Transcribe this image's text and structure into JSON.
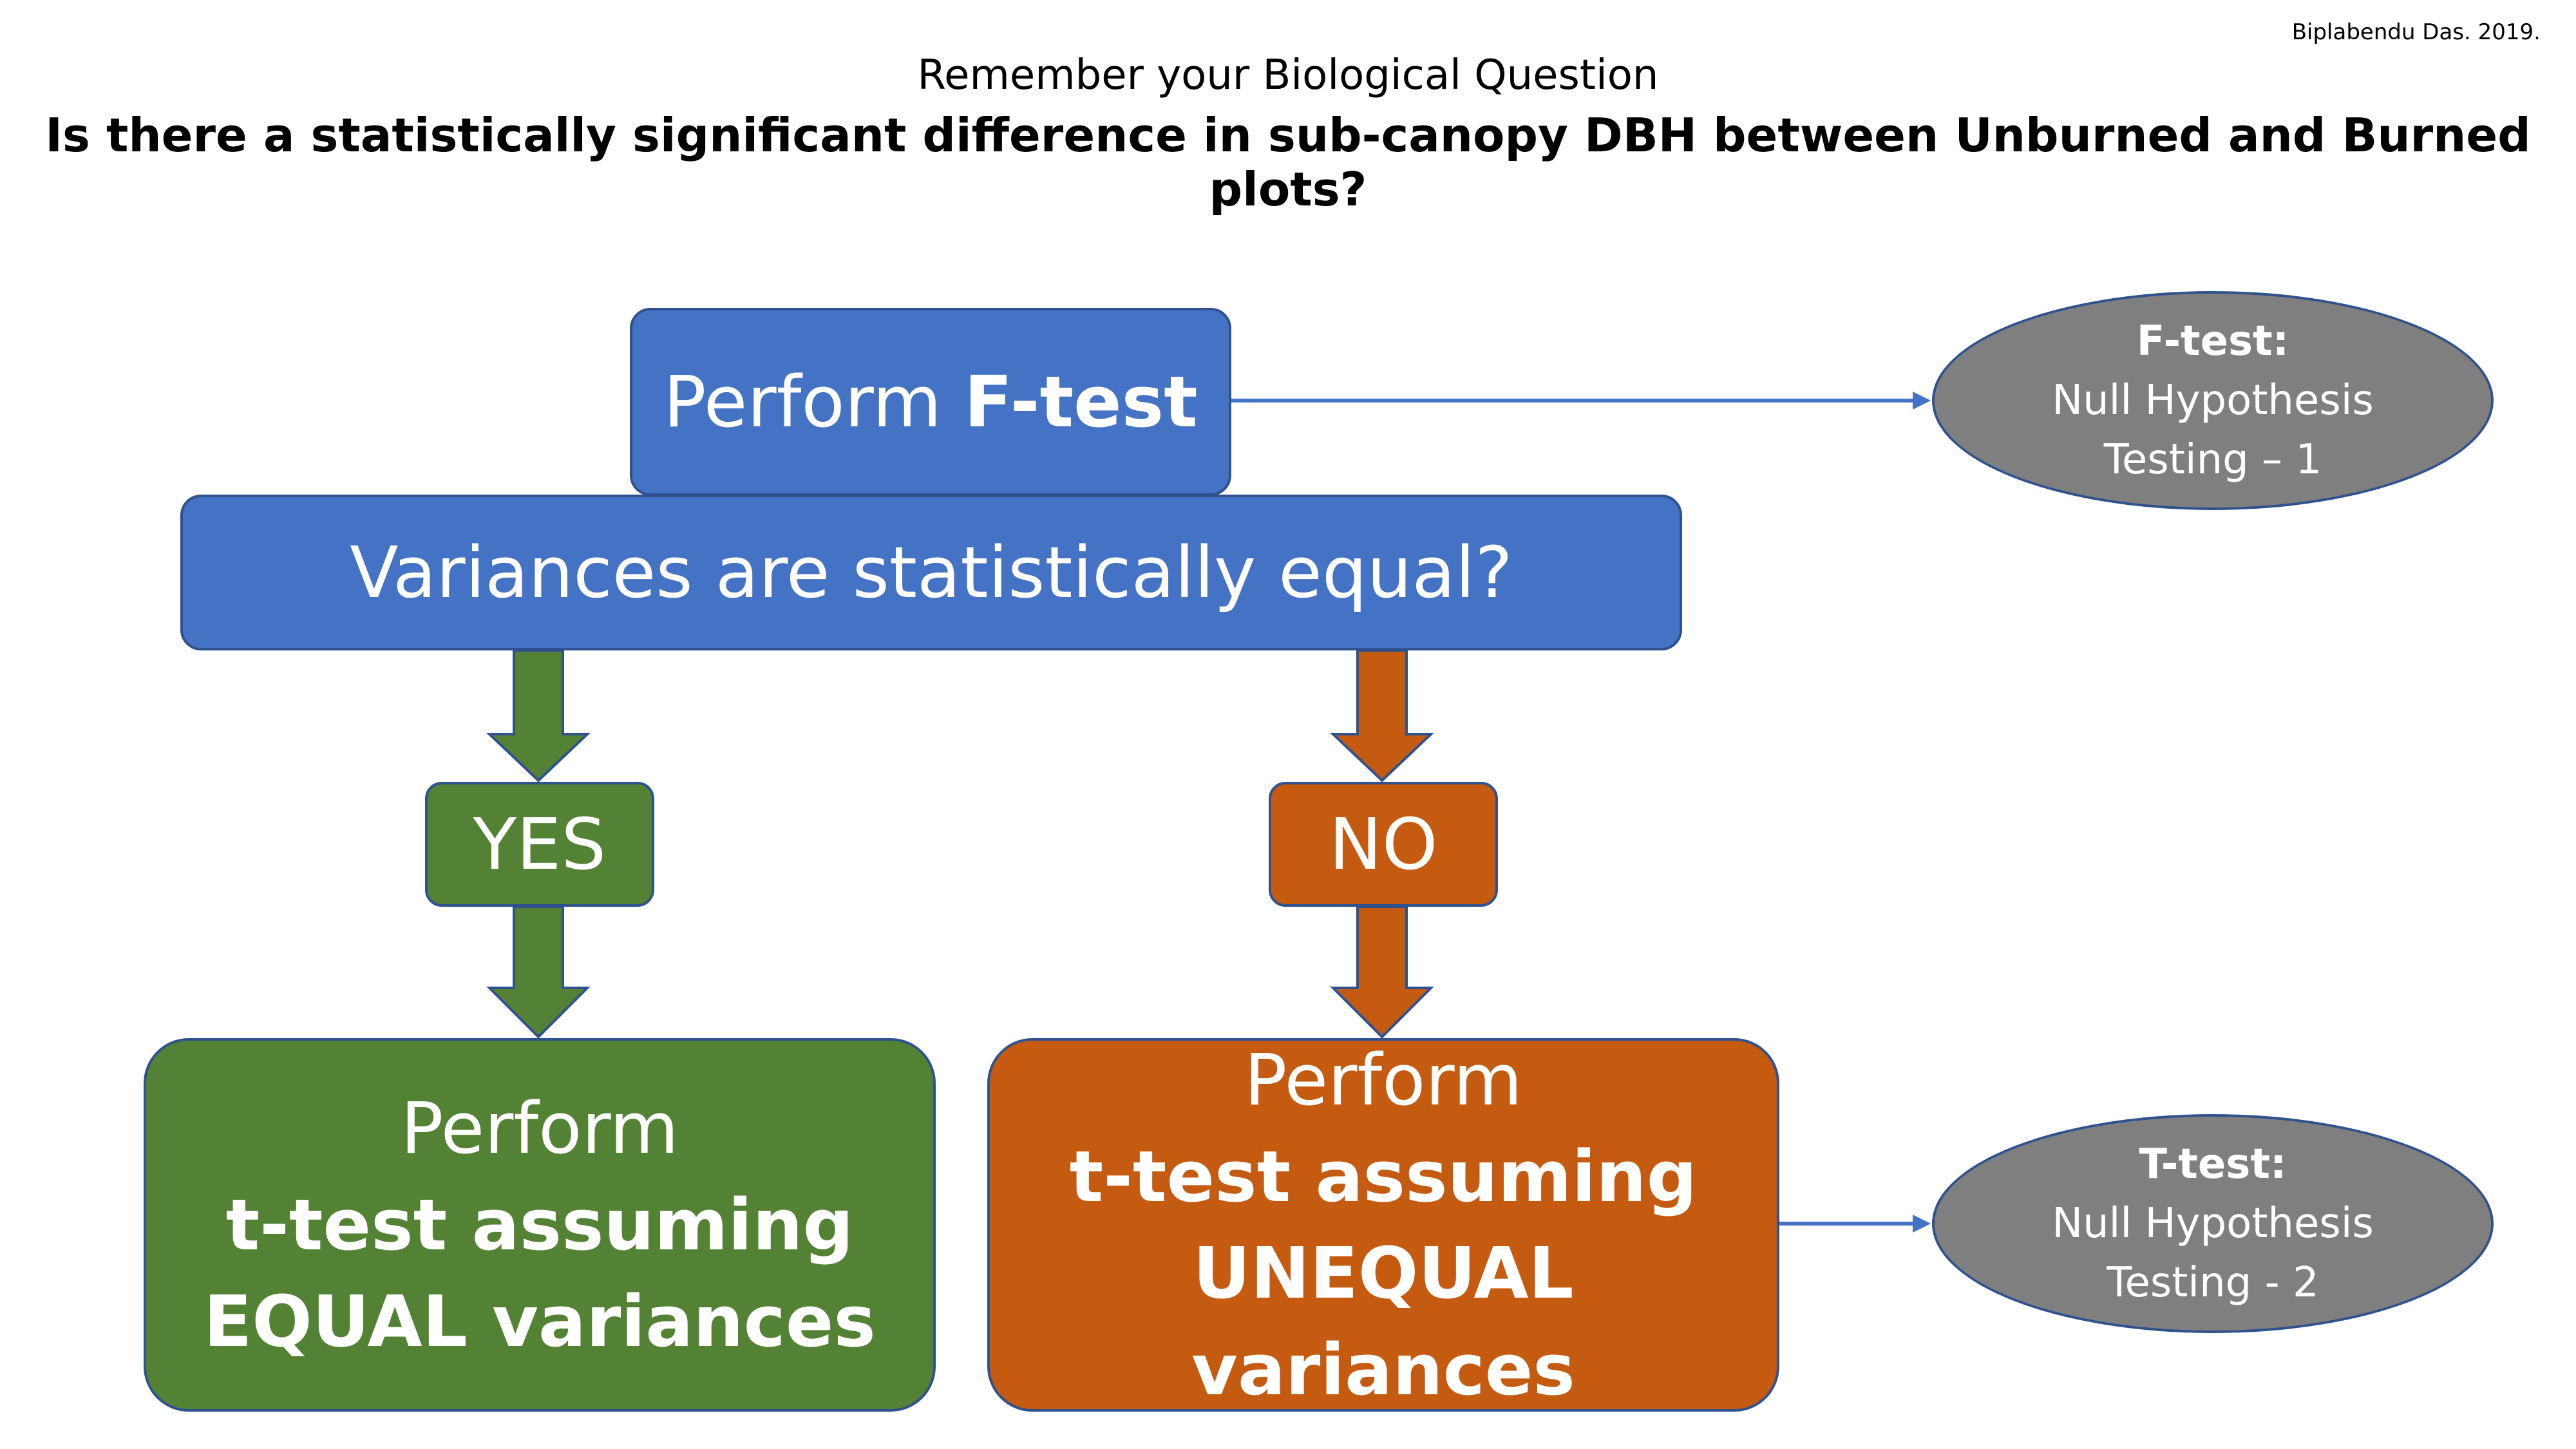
{
  "credit": "Biplabendu Das. 2019.",
  "subtitle": "Remember your Biological Question",
  "title": "Is there a statistically significant difference in sub-canopy DBH between Unburned and Burned plots?",
  "nodes": {
    "ftest": {
      "prefix": "Perform ",
      "bold": "F-test"
    },
    "variance_question": "Variances are statistically equal?",
    "yes": "YES",
    "no": "NO",
    "equal": {
      "line1": "Perform",
      "line2": "t-test assuming",
      "line3": "EQUAL variances"
    },
    "unequal": {
      "line1": "Perform",
      "line2": "t-test assuming",
      "line3": "UNEQUAL variances"
    },
    "ftest_note": {
      "heading": "F-test:",
      "line1": "Null Hypothesis",
      "line2": "Testing – 1"
    },
    "ttest_note": {
      "heading": "T-test:",
      "line1": "Null Hypothesis",
      "line2": "Testing - 2"
    }
  },
  "colors": {
    "blue": "#4472c4",
    "green": "#548235",
    "orange": "#c55a11",
    "gray": "#7f7f7f",
    "border": "#2f528f"
  }
}
